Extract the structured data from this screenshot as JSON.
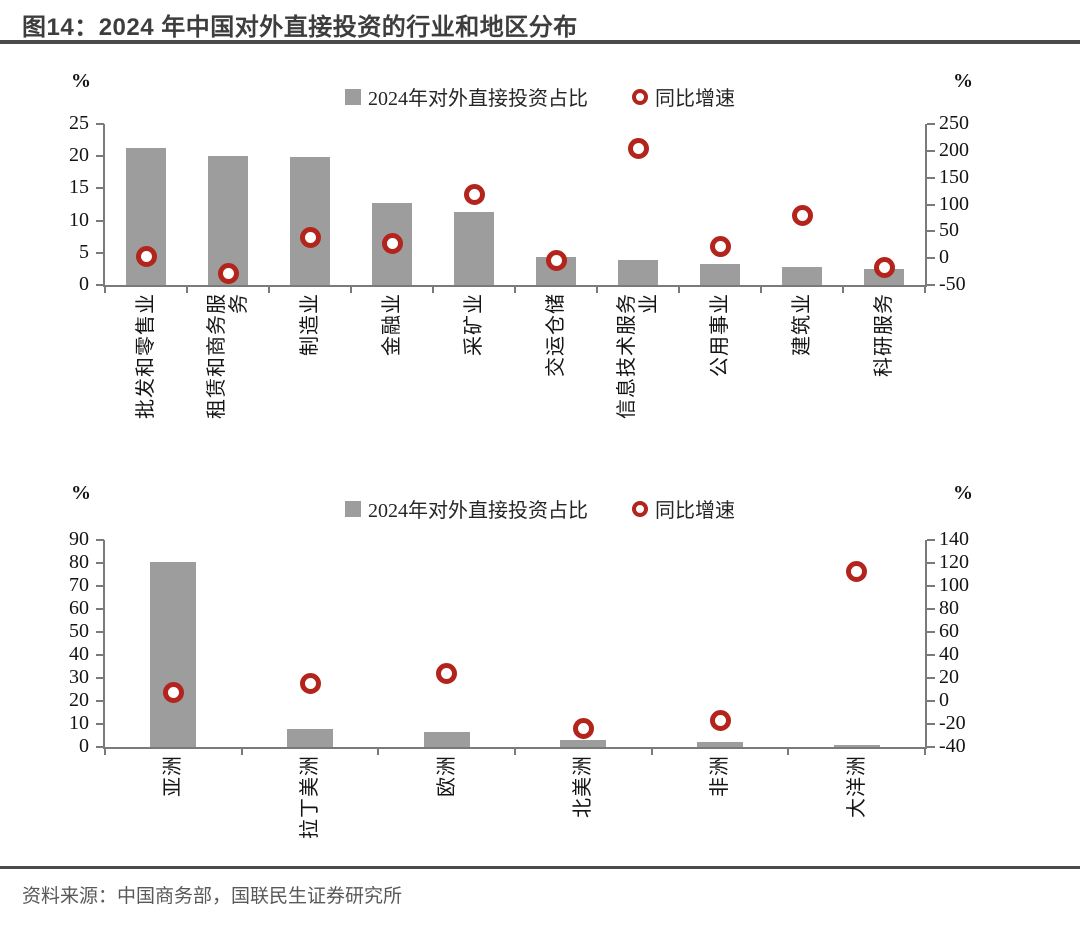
{
  "page": {
    "title": "图14：2024 年中国对外直接投资的行业和地区分布",
    "source": "资料来源：中国商务部，国联民生证券研究所"
  },
  "legend": {
    "bar_label": "2024年对外直接投资占比",
    "dot_label": "同比增速"
  },
  "colors": {
    "bar": "#9d9d9d",
    "dot_ring": "#b2241c",
    "axis": "#7a7a7a",
    "text": "#141414",
    "title_text": "#3d3d3d",
    "rule": "#4a4a4a",
    "source_text": "#595959"
  },
  "chart_data": [
    {
      "type": "bar",
      "subject": "行业分布",
      "categories": [
        "批发和零售业",
        "租赁和商务服\n务",
        "制造业",
        "金融业",
        "采矿业",
        "交运仓储",
        "信息技术服务\n业",
        "公用事业",
        "建筑业",
        "科研服务"
      ],
      "series": [
        {
          "name": "2024年对外直接投资占比",
          "type": "bar",
          "axis": "left",
          "unit": "%",
          "values": [
            21.3,
            20.0,
            19.8,
            12.7,
            11.3,
            4.4,
            3.9,
            3.2,
            2.8,
            2.5
          ]
        },
        {
          "name": "同比增速",
          "type": "scatter",
          "axis": "right",
          "unit": "%",
          "values": [
            3,
            -28,
            39,
            28,
            118,
            -4,
            205,
            21,
            80,
            -17
          ]
        }
      ],
      "left_axis": {
        "title": "%",
        "min": 0,
        "max": 25,
        "step": 5
      },
      "right_axis": {
        "title": "%",
        "min": -50,
        "max": 250,
        "step": 50
      },
      "legend_position": "top",
      "grid": false
    },
    {
      "type": "bar",
      "subject": "地区分布",
      "categories": [
        "亚洲",
        "拉丁美洲",
        "欧洲",
        "北美洲",
        "非洲",
        "大洋洲"
      ],
      "series": [
        {
          "name": "2024年对外直接投资占比",
          "type": "bar",
          "axis": "left",
          "unit": "%",
          "values": [
            80.5,
            8.0,
            6.5,
            3.0,
            2.2,
            1.0
          ]
        },
        {
          "name": "同比增速",
          "type": "scatter",
          "axis": "right",
          "unit": "%",
          "values": [
            7,
            15,
            24,
            -24,
            -17,
            113
          ]
        }
      ],
      "left_axis": {
        "title": "%",
        "min": 0,
        "max": 90,
        "step": 10
      },
      "right_axis": {
        "title": "%",
        "min": -40,
        "max": 140,
        "step": 20
      },
      "legend_position": "top",
      "grid": false
    }
  ]
}
